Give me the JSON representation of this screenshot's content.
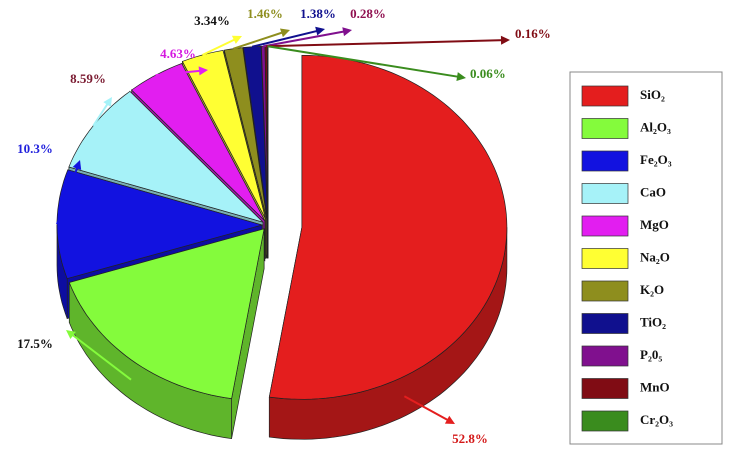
{
  "chart_data": {
    "type": "pie",
    "categories": [
      "SiO₂",
      "Al₂O₃",
      "Fe₂O₃",
      "CaO",
      "MgO",
      "Na₂O",
      "K₂O",
      "TiO₂",
      "P₂0₅",
      "MnO",
      "Cr₂O₃"
    ],
    "values": [
      52.8,
      17.5,
      10.3,
      8.59,
      4.63,
      3.34,
      1.46,
      1.38,
      0.28,
      0.16,
      0.06
    ],
    "value_labels": [
      "52.8%",
      "17.5%",
      "10.3%",
      "8.59%",
      "4.63%",
      "3.34%",
      "1.46%",
      "1.38%",
      "0.28%",
      "0.16%",
      "0.06%"
    ],
    "colors": [
      "#e41e1e",
      "#84fb3c",
      "#1212e0",
      "#a6f2f8",
      "#e21ef0",
      "#ffff33",
      "#8e8e1e",
      "#10108e",
      "#80108e",
      "#800c14",
      "#3a8c1e"
    ],
    "legend": "right"
  }
}
